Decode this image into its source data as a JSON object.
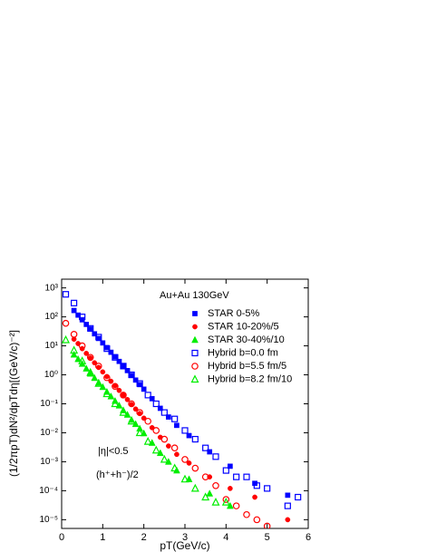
{
  "chart_data": {
    "type": "scatter",
    "xlabel": "pT(GeV/c)",
    "ylabel": "(1/2πpT)dN²/dpTdη[(GeV/c)⁻²]",
    "annotations": [
      "Au+Au 130GeV",
      "|η|<0.5",
      "(h⁺+h⁻)/2"
    ],
    "xlim": [
      0,
      6
    ],
    "xticks": [
      0,
      1,
      2,
      3,
      4,
      5,
      6
    ],
    "ylim": [
      5e-06,
      2000
    ],
    "log_y": true,
    "yticks": [
      {
        "value": 1e-05,
        "label": "10⁻⁵"
      },
      {
        "value": 0.0001,
        "label": "10⁻⁴"
      },
      {
        "value": 0.001,
        "label": "10⁻³"
      },
      {
        "value": 0.01,
        "label": "10⁻²"
      },
      {
        "value": 0.1,
        "label": "10⁻¹"
      },
      {
        "value": 1,
        "label": "10⁰"
      },
      {
        "value": 10,
        "label": "10¹"
      },
      {
        "value": 100,
        "label": "10²"
      },
      {
        "value": 1000,
        "label": "10³"
      }
    ],
    "legend": "upper right",
    "series": [
      {
        "name": "STAR 0-5%",
        "color": "#0000ff",
        "marker": "square",
        "filled": true,
        "x": [
          0.3,
          0.4,
          0.5,
          0.6,
          0.7,
          0.8,
          0.9,
          1.0,
          1.1,
          1.2,
          1.3,
          1.4,
          1.5,
          1.6,
          1.7,
          1.8,
          1.9,
          2.0,
          2.2,
          2.4,
          2.6,
          2.8,
          3.1,
          3.6,
          4.1,
          4.7,
          5.5
        ],
        "values": [
          166,
          115,
          79,
          55,
          38,
          26,
          18,
          12.6,
          8.7,
          6.0,
          4.2,
          2.9,
          2.0,
          1.4,
          0.95,
          0.66,
          0.46,
          0.32,
          0.15,
          0.07,
          0.035,
          0.018,
          0.008,
          0.0022,
          0.0007,
          0.00018,
          7e-05
        ]
      },
      {
        "name": "STAR 10-20%/5",
        "color": "#ff0000",
        "marker": "circle",
        "filled": true,
        "x": [
          0.3,
          0.4,
          0.5,
          0.6,
          0.7,
          0.8,
          0.9,
          1.0,
          1.1,
          1.2,
          1.3,
          1.4,
          1.5,
          1.6,
          1.7,
          1.8,
          1.9,
          2.0,
          2.2,
          2.4,
          2.6,
          2.8,
          3.1,
          3.6,
          4.1,
          4.7,
          5.5
        ],
        "values": [
          17,
          12,
          8,
          5.5,
          3.8,
          2.6,
          1.8,
          1.26,
          0.87,
          0.6,
          0.42,
          0.29,
          0.2,
          0.14,
          0.095,
          0.066,
          0.046,
          0.032,
          0.015,
          0.007,
          0.0035,
          0.0018,
          0.0009,
          0.0003,
          0.00012,
          6e-05,
          1e-05
        ]
      },
      {
        "name": "STAR 30-40%/10",
        "color": "#00ee00",
        "marker": "triangle",
        "filled": true,
        "x": [
          0.3,
          0.4,
          0.5,
          0.6,
          0.7,
          0.8,
          0.9,
          1.0,
          1.1,
          1.2,
          1.3,
          1.4,
          1.5,
          1.6,
          1.7,
          1.8,
          1.9,
          2.0,
          2.2,
          2.4,
          2.6,
          2.8,
          3.1,
          3.6,
          4.1
        ],
        "values": [
          5,
          3.5,
          2.4,
          1.65,
          1.1,
          0.78,
          0.54,
          0.38,
          0.26,
          0.18,
          0.126,
          0.087,
          0.06,
          0.042,
          0.028,
          0.02,
          0.014,
          0.0096,
          0.0045,
          0.002,
          0.001,
          0.0005,
          0.00025,
          8e-05,
          3e-05
        ]
      },
      {
        "name": "Hybrid b=0.0 fm",
        "color": "#0000ff",
        "marker": "square",
        "filled": false,
        "x": [
          0.1,
          0.3,
          0.5,
          0.7,
          0.9,
          1.1,
          1.3,
          1.5,
          1.7,
          1.9,
          2.1,
          2.3,
          2.5,
          2.75,
          3.0,
          3.25,
          3.5,
          3.75,
          4.0,
          4.25,
          4.5,
          4.75,
          5.0,
          5.5,
          5.75
        ],
        "values": [
          600,
          300,
          100,
          40,
          20,
          8,
          4,
          2,
          1,
          0.5,
          0.2,
          0.1,
          0.05,
          0.03,
          0.012,
          0.006,
          0.003,
          0.0015,
          0.0005,
          0.0003,
          0.0003,
          0.00015,
          0.00012,
          3e-05,
          6e-05
        ]
      },
      {
        "name": "Hybrid b=5.5 fm/5",
        "color": "#ff0000",
        "marker": "circle",
        "filled": false,
        "x": [
          0.1,
          0.3,
          0.5,
          0.7,
          0.9,
          1.1,
          1.3,
          1.5,
          1.7,
          1.9,
          2.1,
          2.3,
          2.5,
          2.75,
          3.0,
          3.25,
          3.5,
          3.75,
          4.0,
          4.25,
          4.5,
          4.75,
          5.0
        ],
        "values": [
          60,
          25,
          10,
          4,
          2,
          0.8,
          0.4,
          0.2,
          0.1,
          0.05,
          0.025,
          0.012,
          0.006,
          0.003,
          0.0012,
          0.0006,
          0.0003,
          0.00015,
          5e-05,
          3e-05,
          1.5e-05,
          1e-05,
          6e-06
        ]
      },
      {
        "name": "Hybrid b=8.2 fm/10",
        "color": "#00ee00",
        "marker": "triangle",
        "filled": false,
        "x": [
          0.1,
          0.3,
          0.5,
          0.7,
          0.9,
          1.1,
          1.3,
          1.5,
          1.7,
          1.9,
          2.1,
          2.3,
          2.5,
          2.75,
          3.0,
          3.25,
          3.5,
          3.75,
          4.0
        ],
        "values": [
          16,
          7,
          3,
          1.2,
          0.5,
          0.22,
          0.1,
          0.05,
          0.025,
          0.01,
          0.005,
          0.0025,
          0.0012,
          0.0006,
          0.00025,
          0.00012,
          6e-05,
          4e-05,
          4e-05
        ]
      }
    ]
  }
}
